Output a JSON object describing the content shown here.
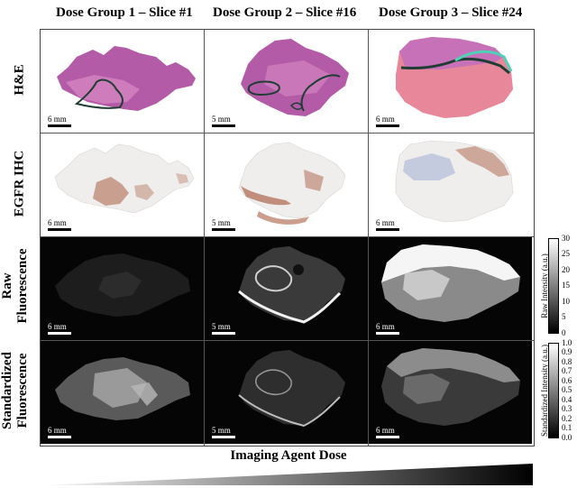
{
  "columns": [
    {
      "title": "Dose Group 1 – Slice #1"
    },
    {
      "title": "Dose Group 2 – Slice #16"
    },
    {
      "title": "Dose Group 3 – Slice #24"
    }
  ],
  "rows": [
    {
      "label_lines": [
        "H&E"
      ]
    },
    {
      "label_lines": [
        "EGFR IHC"
      ]
    },
    {
      "label_lines": [
        "Raw",
        "Fluorescence"
      ]
    },
    {
      "label_lines": [
        "Standardized",
        "Fluorescence"
      ]
    }
  ],
  "scale_bars": [
    [
      "6 mm",
      "5 mm",
      "6 mm"
    ],
    [
      "6 mm",
      "5 mm",
      "6 mm"
    ],
    [
      "6 mm",
      "5 mm",
      "6 mm"
    ],
    [
      "6 mm",
      "5 mm",
      "6 mm"
    ]
  ],
  "colorbars": [
    {
      "title": "Raw Intensity (a.u.)",
      "ticks": [
        "30",
        "25",
        "20",
        "15",
        "10",
        "5",
        "0"
      ]
    },
    {
      "title": "Standardized Intensity (a.u.)",
      "ticks": [
        "1.0",
        "0.9",
        "0.8",
        "0.7",
        "0.6",
        "0.5",
        "0.4",
        "0.3",
        "0.2",
        "0.1",
        "0.0"
      ]
    }
  ],
  "footer": {
    "dose_label": "Imaging Agent Dose"
  },
  "colors": {
    "he_tissue": "#b45ba8",
    "he_tissue_light": "#d98ac4",
    "he_tissue_pink": "#e8879a",
    "annotation_dark": "#1f3d33",
    "annotation_teal": "#4fd1b7",
    "ihc_background": "#f0eeed",
    "ihc_stain": "#a14f32",
    "ihc_blue": "#8fa0cf"
  }
}
